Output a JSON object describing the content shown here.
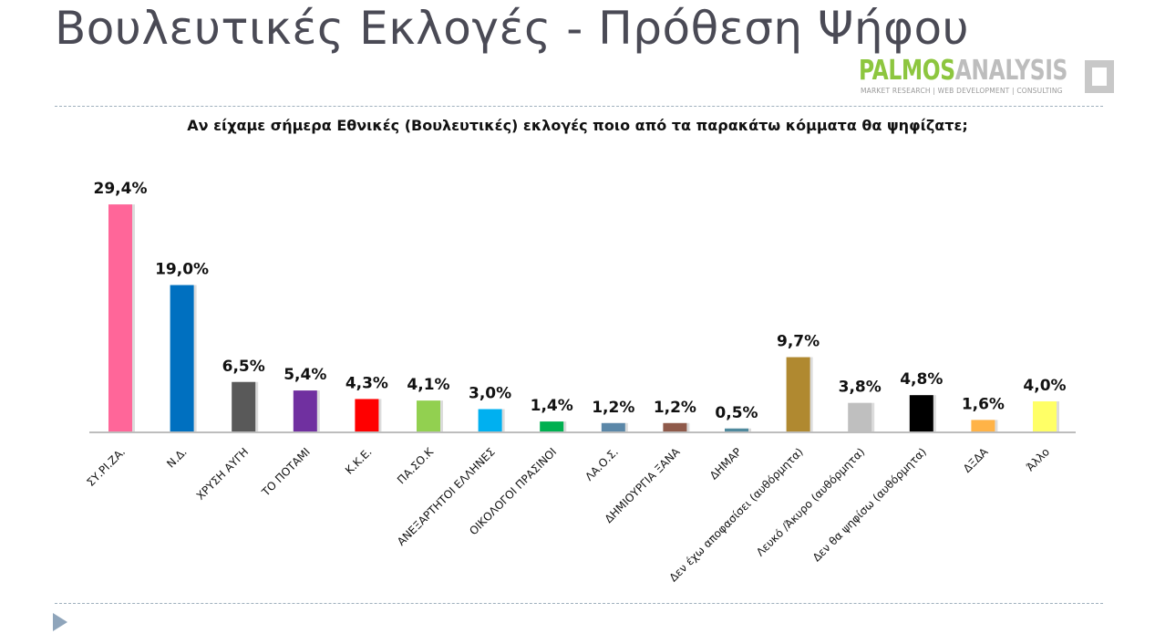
{
  "slide": {
    "title": "Βουλευτικές Εκλογές - Πρόθεση Ψήφου"
  },
  "logo": {
    "name_part1": "PALMOS",
    "name_part2": "ANALYSIS",
    "tagline": "MARKET RESEARCH | WEB DEVELOPMENT | CONSULTING",
    "color_primary": "#8dc63f",
    "color_secondary": "#bdbdbd"
  },
  "chart_data": {
    "type": "bar",
    "title": "Αν είχαμε σήμερα Εθνικές (Βουλευτικές) εκλογές ποιο από τα παρακάτω κόμματα θα ψηφίζατε;",
    "categories": [
      "ΣΥ.ΡΙ.ΖΑ.",
      "Ν.Δ.",
      "ΧΡΥΣΗ ΑΥΓΗ",
      "ΤΟ ΠΟΤΑΜΙ",
      "Κ.Κ.Ε.",
      "ΠΑ.ΣΟ.Κ",
      "ΑΝΕΞΑΡΤΗΤΟΙ ΕΛΛΗΝΕΣ",
      "ΟΙΚΟΛΟΓΟΙ ΠΡΑΣΙΝΟΙ",
      "ΛΑ.Ο.Σ.",
      "ΔΗΜΙΟΥΡΓΙΑ ΞΑΝΑ",
      "ΔΗΜΑΡ",
      "Δεν έχω αποφασίσει (αυθόρμητα)",
      "Λευκό /Άκυρο (αυθόρμητα)",
      "Δεν θα ψηφίσω (αυθόρμητα)",
      "ΔΞΔΑ",
      "Άλλο"
    ],
    "values": [
      29.4,
      19.0,
      6.5,
      5.4,
      4.3,
      4.1,
      3.0,
      1.4,
      1.2,
      1.2,
      0.5,
      9.7,
      3.8,
      4.8,
      1.6,
      4.0
    ],
    "value_labels": [
      "29,4%",
      "19,0%",
      "6,5%",
      "5,4%",
      "4,3%",
      "4,1%",
      "3,0%",
      "1,4%",
      "1,2%",
      "1,2%",
      "0,5%",
      "9,7%",
      "3,8%",
      "4,8%",
      "1,6%",
      "4,0%"
    ],
    "colors": [
      "#ff6699",
      "#0070c0",
      "#595959",
      "#7030a0",
      "#ff0000",
      "#92d050",
      "#00b0f0",
      "#00b050",
      "#5b87a8",
      "#8f5a4a",
      "#4f8a9e",
      "#b08930",
      "#bfbfbf",
      "#000000",
      "#ffb347",
      "#ffff66"
    ],
    "ylim": [
      0,
      30
    ],
    "xlabel": "",
    "ylabel": "",
    "grid": false,
    "legend": "none"
  }
}
